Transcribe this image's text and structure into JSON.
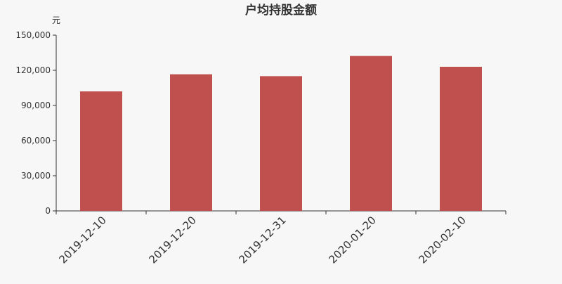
{
  "chart_data": {
    "type": "bar",
    "title": "户均持股金额",
    "ylabel": "元",
    "xlabel": "",
    "categories": [
      "2019-12-10",
      "2019-12-20",
      "2019-12-31",
      "2020-01-20",
      "2020-02-10"
    ],
    "values": [
      102000,
      116600,
      115000,
      132200,
      123000
    ],
    "ylim": [
      0,
      150000
    ],
    "yticks": [
      0,
      30000,
      60000,
      90000,
      120000,
      150000
    ],
    "ytick_labels": [
      "0",
      "30,000",
      "60,000",
      "90,000",
      "120,000",
      "150,000"
    ],
    "grid": false,
    "bar_color": "#c0504d"
  }
}
